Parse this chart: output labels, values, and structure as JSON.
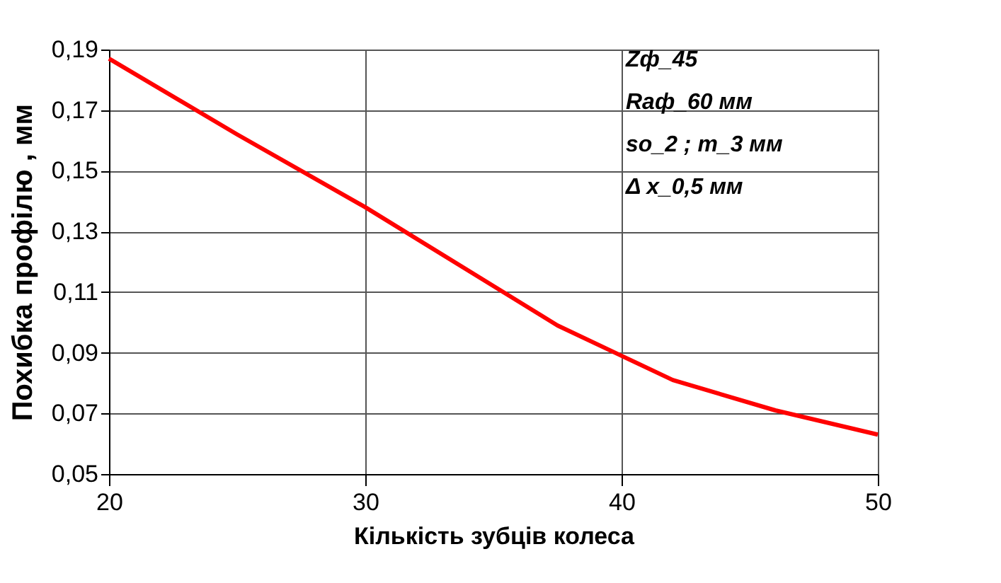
{
  "chart_data": {
    "type": "line",
    "xlabel": "Кількість зубців колеса",
    "ylabel": "Похибка профілю , мм",
    "x": [
      20,
      25,
      30,
      35,
      37.5,
      40,
      42,
      46,
      50
    ],
    "series": [
      {
        "color": "#ff0000",
        "values": [
          0.187,
          0.162,
          0.138,
          0.112,
          0.099,
          0.089,
          0.081,
          0.071,
          0.063
        ]
      }
    ],
    "xlim": [
      20,
      50
    ],
    "xticks": [
      20,
      30,
      40,
      50
    ],
    "ylim": [
      0.05,
      0.19
    ],
    "yticks": [
      {
        "value": 0.05,
        "label": "0,05"
      },
      {
        "value": 0.07,
        "label": "0,07"
      },
      {
        "value": 0.09,
        "label": "0,09"
      },
      {
        "value": 0.11,
        "label": "0,11"
      },
      {
        "value": 0.13,
        "label": "0,13"
      },
      {
        "value": 0.15,
        "label": "0,15"
      },
      {
        "value": 0.17,
        "label": "0,17"
      },
      {
        "value": 0.19,
        "label": "0,19"
      }
    ],
    "grid": true,
    "marker": "none",
    "line_style": "solid",
    "annotations": [
      "Zф_45",
      "Raф_60 мм",
      "so_2 ; m_3 мм",
      "Δ x_0,5 мм"
    ]
  }
}
